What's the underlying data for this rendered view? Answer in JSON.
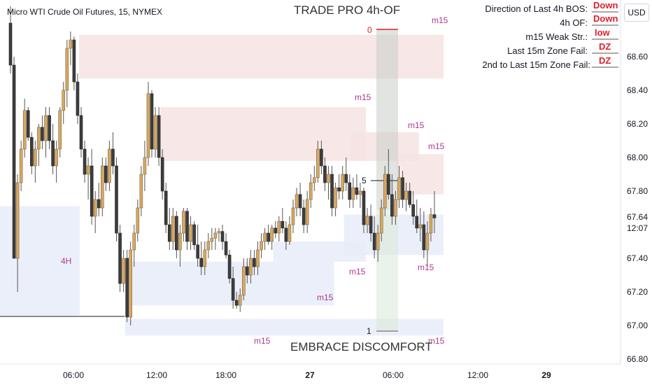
{
  "symbol_title": "Micro WTI Crude Oil Futures, 15, NYMEX",
  "indicator_title": "TRADE PRO 4h-OF",
  "footer_text": "EMBRACE DISCOMFORT",
  "currency_button": "USD",
  "info_panel": [
    {
      "label": "Direction of Last 4h BOS:",
      "value": "Down"
    },
    {
      "label": "4h OF:",
      "value": "Down"
    },
    {
      "label": "m15 Weak Str.:",
      "value": "low"
    },
    {
      "label": "Last 15m Zone Fail:",
      "value": "DZ"
    },
    {
      "label": "2nd to Last 15m Zone Fail:",
      "value": "DZ"
    }
  ],
  "current_price": "67.64",
  "countdown": "12:07",
  "fib_labels": {
    "top": "0",
    "bottom": "1",
    "mid": "5"
  },
  "colors": {
    "up": "#d9a75f",
    "down": "#3d3d3d",
    "supply": "#f6e3e3",
    "demand": "#e7ecf8",
    "label": "#b0378e",
    "value": "#e01e2a"
  },
  "chart_data": {
    "type": "candlestick",
    "title": "Micro WTI Crude Oil Futures, 15, NYMEX",
    "y_ticks": [
      "68.60",
      "68.40",
      "68.20",
      "68.00",
      "67.80",
      "67.40",
      "67.20",
      "67.00",
      "66.80"
    ],
    "x_ticks": [
      "06:00",
      "12:00",
      "18:00",
      "27",
      "06:00",
      "12:00",
      "29"
    ],
    "ylim": [
      66.75,
      68.9
    ],
    "zones": [
      {
        "kind": "supply",
        "label": "m15",
        "from": 68.73,
        "to": 68.47,
        "start": 20,
        "end": 122
      },
      {
        "kind": "supply",
        "label": "m15",
        "from": 68.3,
        "to": 67.98,
        "start": 43,
        "end": 100
      },
      {
        "kind": "supply",
        "label": "m15",
        "from": 68.15,
        "to": 67.98,
        "start": 97,
        "end": 115
      },
      {
        "kind": "supply",
        "label": "m15",
        "from": 68.02,
        "to": 67.78,
        "start": 110,
        "end": 122
      },
      {
        "kind": "demand",
        "label": "4H",
        "from": 67.71,
        "to": 67.06,
        "start": 0,
        "end": 19
      },
      {
        "kind": "demand",
        "label": "",
        "from": 67.38,
        "to": 67.12,
        "start": 35,
        "end": 91
      },
      {
        "kind": "demand",
        "label": "m15",
        "from": 67.5,
        "to": 67.38,
        "start": 75,
        "end": 100
      },
      {
        "kind": "demand",
        "label": "m15",
        "from": 67.66,
        "to": 67.42,
        "start": 95,
        "end": 122
      },
      {
        "kind": "demand",
        "label": "m15",
        "from": 67.04,
        "to": 66.94,
        "start": 33,
        "end": 122
      }
    ],
    "candles": [
      {
        "o": 68.8,
        "h": 68.9,
        "l": 68.5,
        "c": 68.55
      },
      {
        "o": 68.55,
        "h": 68.6,
        "l": 67.4,
        "c": 67.4
      },
      {
        "o": 67.4,
        "h": 67.9,
        "l": 67.2,
        "c": 67.85
      },
      {
        "o": 67.85,
        "h": 68.1,
        "l": 67.8,
        "c": 68.05
      },
      {
        "o": 68.05,
        "h": 68.35,
        "l": 68.0,
        "c": 68.28
      },
      {
        "o": 68.28,
        "h": 68.3,
        "l": 68.1,
        "c": 68.12
      },
      {
        "o": 68.12,
        "h": 68.15,
        "l": 67.9,
        "c": 67.95
      },
      {
        "o": 67.95,
        "h": 68.1,
        "l": 67.85,
        "c": 68.05
      },
      {
        "o": 68.05,
        "h": 68.2,
        "l": 67.95,
        "c": 68.18
      },
      {
        "o": 68.18,
        "h": 68.25,
        "l": 68.05,
        "c": 68.1
      },
      {
        "o": 68.1,
        "h": 68.3,
        "l": 68.0,
        "c": 68.25
      },
      {
        "o": 68.25,
        "h": 68.3,
        "l": 68.05,
        "c": 68.1
      },
      {
        "o": 68.1,
        "h": 68.2,
        "l": 67.9,
        "c": 67.95
      },
      {
        "o": 67.95,
        "h": 68.1,
        "l": 67.85,
        "c": 68.05
      },
      {
        "o": 68.05,
        "h": 68.3,
        "l": 68.0,
        "c": 68.28
      },
      {
        "o": 68.28,
        "h": 68.45,
        "l": 68.2,
        "c": 68.4
      },
      {
        "o": 68.4,
        "h": 68.7,
        "l": 68.3,
        "c": 68.65
      },
      {
        "o": 68.65,
        "h": 68.75,
        "l": 68.55,
        "c": 68.7
      },
      {
        "o": 68.7,
        "h": 68.72,
        "l": 68.4,
        "c": 68.45
      },
      {
        "o": 68.45,
        "h": 68.5,
        "l": 68.2,
        "c": 68.25
      },
      {
        "o": 68.25,
        "h": 68.3,
        "l": 68.0,
        "c": 68.05
      },
      {
        "o": 68.05,
        "h": 68.1,
        "l": 67.85,
        "c": 67.9
      },
      {
        "o": 67.9,
        "h": 68.0,
        "l": 67.75,
        "c": 67.95
      },
      {
        "o": 67.95,
        "h": 68.05,
        "l": 67.6,
        "c": 67.65
      },
      {
        "o": 67.65,
        "h": 67.8,
        "l": 67.55,
        "c": 67.75
      },
      {
        "o": 67.75,
        "h": 67.85,
        "l": 67.65,
        "c": 67.7
      },
      {
        "o": 67.7,
        "h": 68.0,
        "l": 67.65,
        "c": 67.95
      },
      {
        "o": 67.95,
        "h": 68.0,
        "l": 67.8,
        "c": 67.85
      },
      {
        "o": 67.85,
        "h": 68.1,
        "l": 67.8,
        "c": 68.05
      },
      {
        "o": 68.05,
        "h": 68.15,
        "l": 67.9,
        "c": 67.95
      },
      {
        "o": 67.95,
        "h": 68.0,
        "l": 67.5,
        "c": 67.55
      },
      {
        "o": 67.55,
        "h": 67.6,
        "l": 67.2,
        "c": 67.25
      },
      {
        "o": 67.25,
        "h": 67.45,
        "l": 67.2,
        "c": 67.4
      },
      {
        "o": 67.4,
        "h": 67.45,
        "l": 67.02,
        "c": 67.05
      },
      {
        "o": 67.05,
        "h": 67.5,
        "l": 67.0,
        "c": 67.45
      },
      {
        "o": 67.45,
        "h": 67.6,
        "l": 67.35,
        "c": 67.55
      },
      {
        "o": 67.55,
        "h": 67.75,
        "l": 67.5,
        "c": 67.7
      },
      {
        "o": 67.7,
        "h": 67.95,
        "l": 67.65,
        "c": 67.9
      },
      {
        "o": 67.9,
        "h": 68.1,
        "l": 67.8,
        "c": 68.0
      },
      {
        "o": 68.0,
        "h": 68.45,
        "l": 67.95,
        "c": 68.38
      },
      {
        "o": 68.38,
        "h": 68.4,
        "l": 68.0,
        "c": 68.05
      },
      {
        "o": 68.05,
        "h": 68.3,
        "l": 68.0,
        "c": 68.25
      },
      {
        "o": 68.25,
        "h": 68.3,
        "l": 67.95,
        "c": 68.0
      },
      {
        "o": 68.0,
        "h": 68.05,
        "l": 67.75,
        "c": 67.8
      },
      {
        "o": 67.8,
        "h": 67.85,
        "l": 67.55,
        "c": 67.6
      },
      {
        "o": 67.6,
        "h": 67.7,
        "l": 67.45,
        "c": 67.5
      },
      {
        "o": 67.5,
        "h": 67.7,
        "l": 67.45,
        "c": 67.65
      },
      {
        "o": 67.65,
        "h": 67.68,
        "l": 67.4,
        "c": 67.45
      },
      {
        "o": 67.45,
        "h": 67.6,
        "l": 67.35,
        "c": 67.55
      },
      {
        "o": 67.55,
        "h": 67.7,
        "l": 67.5,
        "c": 67.68
      },
      {
        "o": 67.68,
        "h": 67.7,
        "l": 67.45,
        "c": 67.5
      },
      {
        "o": 67.5,
        "h": 67.65,
        "l": 67.45,
        "c": 67.6
      },
      {
        "o": 67.6,
        "h": 67.62,
        "l": 67.45,
        "c": 67.48
      },
      {
        "o": 67.48,
        "h": 67.6,
        "l": 67.35,
        "c": 67.4
      },
      {
        "o": 67.4,
        "h": 67.5,
        "l": 67.3,
        "c": 67.35
      },
      {
        "o": 67.35,
        "h": 67.5,
        "l": 67.3,
        "c": 67.45
      },
      {
        "o": 67.45,
        "h": 67.55,
        "l": 67.4,
        "c": 67.5
      },
      {
        "o": 67.5,
        "h": 67.58,
        "l": 67.45,
        "c": 67.52
      },
      {
        "o": 67.52,
        "h": 67.58,
        "l": 67.45,
        "c": 67.55
      },
      {
        "o": 67.55,
        "h": 67.58,
        "l": 67.5,
        "c": 67.56
      },
      {
        "o": 67.56,
        "h": 67.6,
        "l": 67.45,
        "c": 67.5
      },
      {
        "o": 67.5,
        "h": 67.55,
        "l": 67.4,
        "c": 67.42
      },
      {
        "o": 67.42,
        "h": 67.45,
        "l": 67.25,
        "c": 67.28
      },
      {
        "o": 67.28,
        "h": 67.35,
        "l": 67.1,
        "c": 67.15
      },
      {
        "o": 67.15,
        "h": 67.2,
        "l": 67.1,
        "c": 67.12
      },
      {
        "o": 67.12,
        "h": 67.22,
        "l": 67.08,
        "c": 67.18
      },
      {
        "o": 67.18,
        "h": 67.4,
        "l": 67.15,
        "c": 67.35
      },
      {
        "o": 67.35,
        "h": 67.4,
        "l": 67.25,
        "c": 67.3
      },
      {
        "o": 67.3,
        "h": 67.45,
        "l": 67.25,
        "c": 67.4
      },
      {
        "o": 67.4,
        "h": 67.45,
        "l": 67.3,
        "c": 67.35
      },
      {
        "o": 67.35,
        "h": 67.5,
        "l": 67.3,
        "c": 67.45
      },
      {
        "o": 67.45,
        "h": 67.55,
        "l": 67.4,
        "c": 67.5
      },
      {
        "o": 67.5,
        "h": 67.58,
        "l": 67.45,
        "c": 67.55
      },
      {
        "o": 67.55,
        "h": 67.6,
        "l": 67.48,
        "c": 67.5
      },
      {
        "o": 67.5,
        "h": 67.6,
        "l": 67.45,
        "c": 67.58
      },
      {
        "o": 67.58,
        "h": 67.62,
        "l": 67.52,
        "c": 67.55
      },
      {
        "o": 67.55,
        "h": 67.65,
        "l": 67.5,
        "c": 67.62
      },
      {
        "o": 67.62,
        "h": 67.7,
        "l": 67.55,
        "c": 67.58
      },
      {
        "o": 67.58,
        "h": 67.62,
        "l": 67.45,
        "c": 67.5
      },
      {
        "o": 67.5,
        "h": 67.65,
        "l": 67.48,
        "c": 67.6
      },
      {
        "o": 67.6,
        "h": 67.75,
        "l": 67.55,
        "c": 67.7
      },
      {
        "o": 67.7,
        "h": 67.82,
        "l": 67.65,
        "c": 67.78
      },
      {
        "o": 67.78,
        "h": 67.85,
        "l": 67.65,
        "c": 67.7
      },
      {
        "o": 67.7,
        "h": 67.75,
        "l": 67.55,
        "c": 67.6
      },
      {
        "o": 67.6,
        "h": 67.8,
        "l": 67.55,
        "c": 67.75
      },
      {
        "o": 67.75,
        "h": 67.9,
        "l": 67.7,
        "c": 67.85
      },
      {
        "o": 67.85,
        "h": 67.95,
        "l": 67.8,
        "c": 67.88
      },
      {
        "o": 67.88,
        "h": 68.1,
        "l": 67.85,
        "c": 68.05
      },
      {
        "o": 68.05,
        "h": 68.1,
        "l": 67.9,
        "c": 67.95
      },
      {
        "o": 67.95,
        "h": 68.0,
        "l": 67.8,
        "c": 67.85
      },
      {
        "o": 67.85,
        "h": 67.95,
        "l": 67.75,
        "c": 67.9
      },
      {
        "o": 67.9,
        "h": 67.95,
        "l": 67.65,
        "c": 67.7
      },
      {
        "o": 67.7,
        "h": 67.85,
        "l": 67.65,
        "c": 67.82
      },
      {
        "o": 67.82,
        "h": 67.9,
        "l": 67.75,
        "c": 67.8
      },
      {
        "o": 67.8,
        "h": 67.95,
        "l": 67.75,
        "c": 67.9
      },
      {
        "o": 67.9,
        "h": 68.0,
        "l": 67.8,
        "c": 67.85
      },
      {
        "o": 67.85,
        "h": 67.9,
        "l": 67.7,
        "c": 67.75
      },
      {
        "o": 67.75,
        "h": 67.88,
        "l": 67.7,
        "c": 67.82
      },
      {
        "o": 67.82,
        "h": 67.9,
        "l": 67.75,
        "c": 67.78
      },
      {
        "o": 67.78,
        "h": 67.85,
        "l": 67.7,
        "c": 67.8
      },
      {
        "o": 67.8,
        "h": 67.82,
        "l": 67.55,
        "c": 67.6
      },
      {
        "o": 67.6,
        "h": 67.7,
        "l": 67.55,
        "c": 67.65
      },
      {
        "o": 67.65,
        "h": 67.72,
        "l": 67.5,
        "c": 67.55
      },
      {
        "o": 67.55,
        "h": 67.65,
        "l": 67.4,
        "c": 67.45
      },
      {
        "o": 67.45,
        "h": 67.6,
        "l": 67.38,
        "c": 67.55
      },
      {
        "o": 67.55,
        "h": 67.75,
        "l": 67.5,
        "c": 67.7
      },
      {
        "o": 67.7,
        "h": 67.95,
        "l": 67.65,
        "c": 67.9
      },
      {
        "o": 67.9,
        "h": 68.05,
        "l": 67.75,
        "c": 67.78
      },
      {
        "o": 67.78,
        "h": 67.9,
        "l": 67.6,
        "c": 67.65
      },
      {
        "o": 67.65,
        "h": 67.8,
        "l": 67.6,
        "c": 67.75
      },
      {
        "o": 67.75,
        "h": 67.95,
        "l": 67.7,
        "c": 67.88
      },
      {
        "o": 67.88,
        "h": 67.92,
        "l": 67.7,
        "c": 67.75
      },
      {
        "o": 67.75,
        "h": 67.85,
        "l": 67.68,
        "c": 67.8
      },
      {
        "o": 67.8,
        "h": 67.85,
        "l": 67.7,
        "c": 67.72
      },
      {
        "o": 67.72,
        "h": 67.8,
        "l": 67.6,
        "c": 67.65
      },
      {
        "o": 67.65,
        "h": 67.75,
        "l": 67.55,
        "c": 67.58
      },
      {
        "o": 67.58,
        "h": 67.7,
        "l": 67.5,
        "c": 67.6
      },
      {
        "o": 67.6,
        "h": 67.68,
        "l": 67.4,
        "c": 67.45
      },
      {
        "o": 67.45,
        "h": 67.62,
        "l": 67.35,
        "c": 67.55
      },
      {
        "o": 67.55,
        "h": 67.7,
        "l": 67.5,
        "c": 67.66
      },
      {
        "o": 67.66,
        "h": 67.8,
        "l": 67.55,
        "c": 67.64
      }
    ]
  }
}
